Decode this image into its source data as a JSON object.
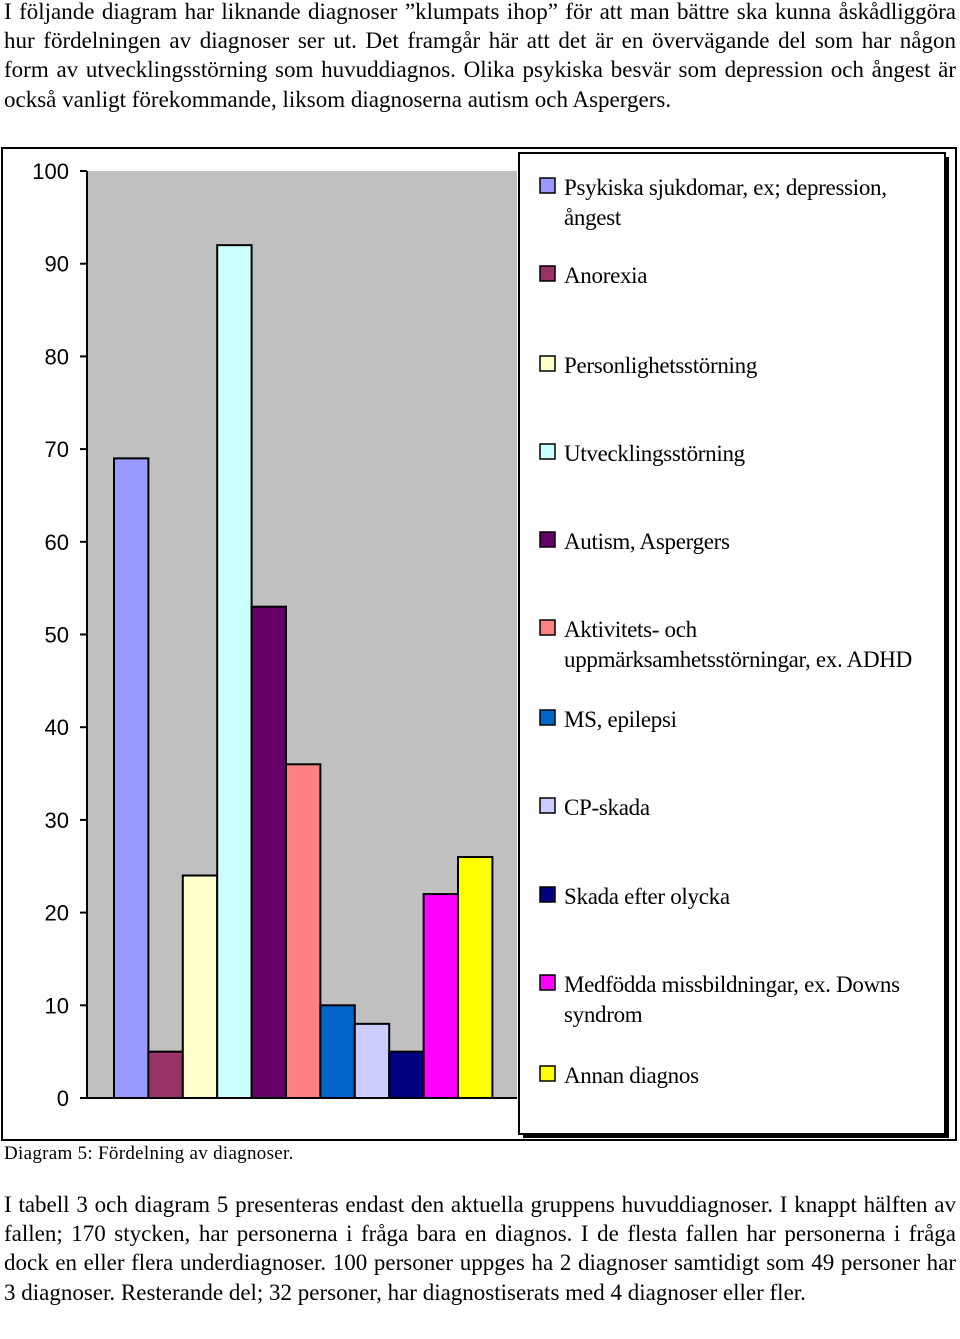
{
  "intro_text": "I följande diagram har liknande diagnoser ”klumpats ihop” för att man bättre ska kunna åskådliggöra hur fördelningen av diagnoser ser ut. Det framgår här att det är en övervägande del som har någon form av utvecklingsstörning som huvuddiagnos. Olika psykiska besvär som depression och ångest är också vanligt förekommande, liksom diagnoserna autism och Aspergers.",
  "caption": "Diagram 5: Fördelning av diagnoser.",
  "outro_text": "I tabell 3 och diagram 5 presenteras endast den aktuella gruppens huvuddiagnoser. I knappt hälften av fallen; 170 stycken, har personerna i fråga bara en diagnos. I de flesta fallen har personerna i fråga dock en eller flera underdiagnoser. 100 personer uppges ha 2 diagnoser samtidigt som 49 personer har 3 diagnoser. Resterande del; 32 personer, har diagnostiserats med 4 diagnoser eller fler.",
  "chart_data": {
    "type": "bar",
    "ylim": [
      0,
      100
    ],
    "yticks": [
      "0",
      "10",
      "20",
      "30",
      "40",
      "50",
      "60",
      "70",
      "80",
      "90",
      "100"
    ],
    "grid": false,
    "legend_position": "right",
    "plot_background": "#c0c0c0",
    "series": [
      {
        "name": "Psykiska sjukdomar, ex; depression, ångest",
        "value": 69,
        "color": "#9999ff"
      },
      {
        "name": "Anorexia",
        "value": 5,
        "color": "#993366"
      },
      {
        "name": "Personlighetsstörning",
        "value": 24,
        "color": "#ffffcc"
      },
      {
        "name": "Utvecklingsstörning",
        "value": 92,
        "color": "#ccffff"
      },
      {
        "name": "Autism, Aspergers",
        "value": 53,
        "color": "#660066"
      },
      {
        "name": "Aktivitets- och uppmärksamhetsstörningar, ex. ADHD",
        "value": 36,
        "color": "#ff8080"
      },
      {
        "name": "MS, epilepsi",
        "value": 10,
        "color": "#0066cc"
      },
      {
        "name": "CP-skada",
        "value": 8,
        "color": "#ccccff"
      },
      {
        "name": "Skada efter olycka",
        "value": 5,
        "color": "#000080"
      },
      {
        "name": "Medfödda missbildningar, ex. Downs syndrom",
        "value": 22,
        "color": "#ff00ff"
      },
      {
        "name": "Annan diagnos",
        "value": 26,
        "color": "#ffff00"
      }
    ]
  }
}
